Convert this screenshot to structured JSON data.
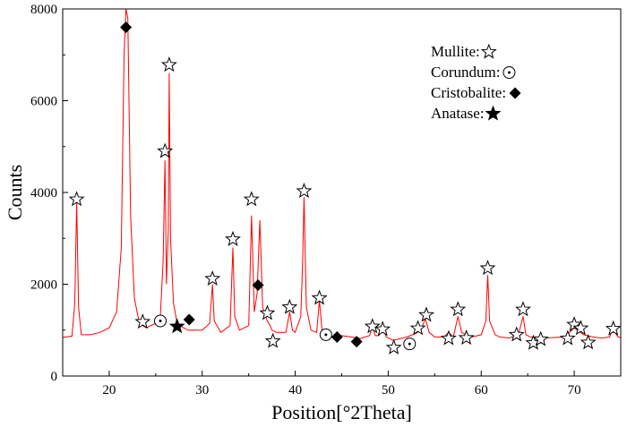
{
  "chart_data": {
    "type": "line",
    "title": "",
    "xlabel": "Position[°2Theta]",
    "ylabel": "Counts",
    "xlim": [
      15,
      75
    ],
    "ylim": [
      0,
      8000
    ],
    "x_ticks": [
      20,
      30,
      40,
      50,
      60,
      70
    ],
    "y_ticks": [
      0,
      2000,
      4000,
      6000,
      8000
    ],
    "grid": false,
    "line_color": "#ff0000",
    "series": [
      {
        "values": [
          [
            15,
            840
          ],
          [
            16,
            870
          ],
          [
            16.3,
            1600
          ],
          [
            16.5,
            3800
          ],
          [
            16.7,
            1500
          ],
          [
            17,
            900
          ],
          [
            18,
            900
          ],
          [
            19,
            950
          ],
          [
            20,
            1050
          ],
          [
            20.8,
            1400
          ],
          [
            21.3,
            2800
          ],
          [
            21.6,
            7000
          ],
          [
            21.8,
            8000
          ],
          [
            22,
            7800
          ],
          [
            22.3,
            3500
          ],
          [
            22.7,
            1700
          ],
          [
            23.2,
            1200
          ],
          [
            23.6,
            1100
          ],
          [
            24,
            1050
          ],
          [
            24.5,
            1100
          ],
          [
            25,
            1150
          ],
          [
            25.5,
            1300
          ],
          [
            25.8,
            2500
          ],
          [
            26,
            4700
          ],
          [
            26.15,
            2000
          ],
          [
            26.35,
            3200
          ],
          [
            26.45,
            6600
          ],
          [
            26.6,
            3000
          ],
          [
            26.9,
            1600
          ],
          [
            27.3,
            1150
          ],
          [
            28,
            1050
          ],
          [
            28.5,
            1000
          ],
          [
            29,
            1000
          ],
          [
            30,
            1000
          ],
          [
            30.8,
            1150
          ],
          [
            31.1,
            2000
          ],
          [
            31.3,
            1200
          ],
          [
            32,
            950
          ],
          [
            33,
            1100
          ],
          [
            33.3,
            2800
          ],
          [
            33.5,
            1300
          ],
          [
            34,
            1000
          ],
          [
            35,
            1100
          ],
          [
            35.3,
            3500
          ],
          [
            35.6,
            1400
          ],
          [
            35.9,
            1800
          ],
          [
            36.2,
            3400
          ],
          [
            36.5,
            1500
          ],
          [
            37,
            1200
          ],
          [
            37.3,
            1100
          ],
          [
            37.5,
            1000
          ],
          [
            38,
            950
          ],
          [
            39,
            950
          ],
          [
            39.4,
            1400
          ],
          [
            39.7,
            1000
          ],
          [
            40,
            950
          ],
          [
            40.6,
            1300
          ],
          [
            40.8,
            2500
          ],
          [
            40.95,
            3900
          ],
          [
            41.2,
            1500
          ],
          [
            41.7,
            1000
          ],
          [
            42.3,
            950
          ],
          [
            42.6,
            1650
          ],
          [
            42.9,
            950
          ],
          [
            43.5,
            850
          ],
          [
            44,
            850
          ],
          [
            45,
            880
          ],
          [
            46,
            850
          ],
          [
            47,
            820
          ],
          [
            48,
            880
          ],
          [
            48.3,
            1100
          ],
          [
            48.6,
            880
          ],
          [
            49,
            880
          ],
          [
            49.4,
            1050
          ],
          [
            49.8,
            850
          ],
          [
            50.5,
            780
          ],
          [
            51,
            800
          ],
          [
            52,
            850
          ],
          [
            53,
            930
          ],
          [
            53.5,
            1000
          ],
          [
            54,
            1250
          ],
          [
            54.4,
            950
          ],
          [
            55,
            850
          ],
          [
            56,
            850
          ],
          [
            56.5,
            950
          ],
          [
            57,
            850
          ],
          [
            57.5,
            1300
          ],
          [
            57.9,
            950
          ],
          [
            58.5,
            880
          ],
          [
            59,
            850
          ],
          [
            60,
            900
          ],
          [
            60.5,
            1200
          ],
          [
            60.7,
            2200
          ],
          [
            60.9,
            1200
          ],
          [
            61.5,
            900
          ],
          [
            62,
            850
          ],
          [
            63,
            830
          ],
          [
            64,
            900
          ],
          [
            64.5,
            1300
          ],
          [
            64.8,
            900
          ],
          [
            65.3,
            850
          ],
          [
            66,
            850
          ],
          [
            67,
            830
          ],
          [
            68,
            840
          ],
          [
            69,
            850
          ],
          [
            69.5,
            950
          ],
          [
            70,
            1050
          ],
          [
            70.4,
            1000
          ],
          [
            71,
            900
          ],
          [
            72,
            850
          ],
          [
            73,
            830
          ],
          [
            73.8,
            850
          ],
          [
            74,
            950
          ],
          [
            74.4,
            950
          ],
          [
            74.7,
            850
          ],
          [
            75,
            840
          ]
        ]
      }
    ],
    "legend": {
      "position": "top-right",
      "items": [
        {
          "label": "Mullite:",
          "marker": "star-outline"
        },
        {
          "label": "Corundum:",
          "marker": "circle-dot"
        },
        {
          "label": "Cristobalite:",
          "marker": "diamond"
        },
        {
          "label": "Anatase:",
          "marker": "star-filled"
        }
      ]
    },
    "markers": [
      {
        "type": "star-outline",
        "x": 16.5,
        "y": 3850
      },
      {
        "type": "diamond",
        "x": 21.8,
        "y": 7600
      },
      {
        "type": "star-outline",
        "x": 23.6,
        "y": 1180
      },
      {
        "type": "circle-dot",
        "x": 25.5,
        "y": 1200
      },
      {
        "type": "star-outline",
        "x": 26.0,
        "y": 4900
      },
      {
        "type": "star-outline",
        "x": 26.45,
        "y": 6780
      },
      {
        "type": "star-filled",
        "x": 27.3,
        "y": 1080
      },
      {
        "type": "diamond",
        "x": 28.6,
        "y": 1230
      },
      {
        "type": "star-outline",
        "x": 31.1,
        "y": 2120
      },
      {
        "type": "star-outline",
        "x": 33.3,
        "y": 2980
      },
      {
        "type": "star-outline",
        "x": 35.3,
        "y": 3850
      },
      {
        "type": "diamond",
        "x": 36.0,
        "y": 1980
      },
      {
        "type": "star-outline",
        "x": 37.0,
        "y": 1370
      },
      {
        "type": "star-outline",
        "x": 37.6,
        "y": 760
      },
      {
        "type": "star-outline",
        "x": 39.4,
        "y": 1500
      },
      {
        "type": "star-outline",
        "x": 40.95,
        "y": 4030
      },
      {
        "type": "star-outline",
        "x": 42.6,
        "y": 1700
      },
      {
        "type": "circle-dot",
        "x": 43.3,
        "y": 900
      },
      {
        "type": "diamond",
        "x": 44.5,
        "y": 850
      },
      {
        "type": "diamond",
        "x": 46.6,
        "y": 750
      },
      {
        "type": "star-outline",
        "x": 48.3,
        "y": 1080
      },
      {
        "type": "star-outline",
        "x": 49.4,
        "y": 1020
      },
      {
        "type": "star-outline",
        "x": 50.6,
        "y": 620
      },
      {
        "type": "circle-dot",
        "x": 52.3,
        "y": 700
      },
      {
        "type": "star-outline",
        "x": 53.2,
        "y": 1040
      },
      {
        "type": "star-outline",
        "x": 54.1,
        "y": 1330
      },
      {
        "type": "star-outline",
        "x": 56.5,
        "y": 820
      },
      {
        "type": "star-outline",
        "x": 57.5,
        "y": 1450
      },
      {
        "type": "star-outline",
        "x": 58.4,
        "y": 830
      },
      {
        "type": "star-outline",
        "x": 60.7,
        "y": 2350
      },
      {
        "type": "star-outline",
        "x": 63.8,
        "y": 900
      },
      {
        "type": "star-outline",
        "x": 64.5,
        "y": 1450
      },
      {
        "type": "star-outline",
        "x": 65.6,
        "y": 720
      },
      {
        "type": "star-outline",
        "x": 66.4,
        "y": 800
      },
      {
        "type": "star-outline",
        "x": 69.3,
        "y": 820
      },
      {
        "type": "star-outline",
        "x": 70.0,
        "y": 1120
      },
      {
        "type": "star-outline",
        "x": 70.7,
        "y": 1040
      },
      {
        "type": "star-outline",
        "x": 71.5,
        "y": 730
      },
      {
        "type": "star-outline",
        "x": 74.2,
        "y": 1030
      }
    ]
  }
}
